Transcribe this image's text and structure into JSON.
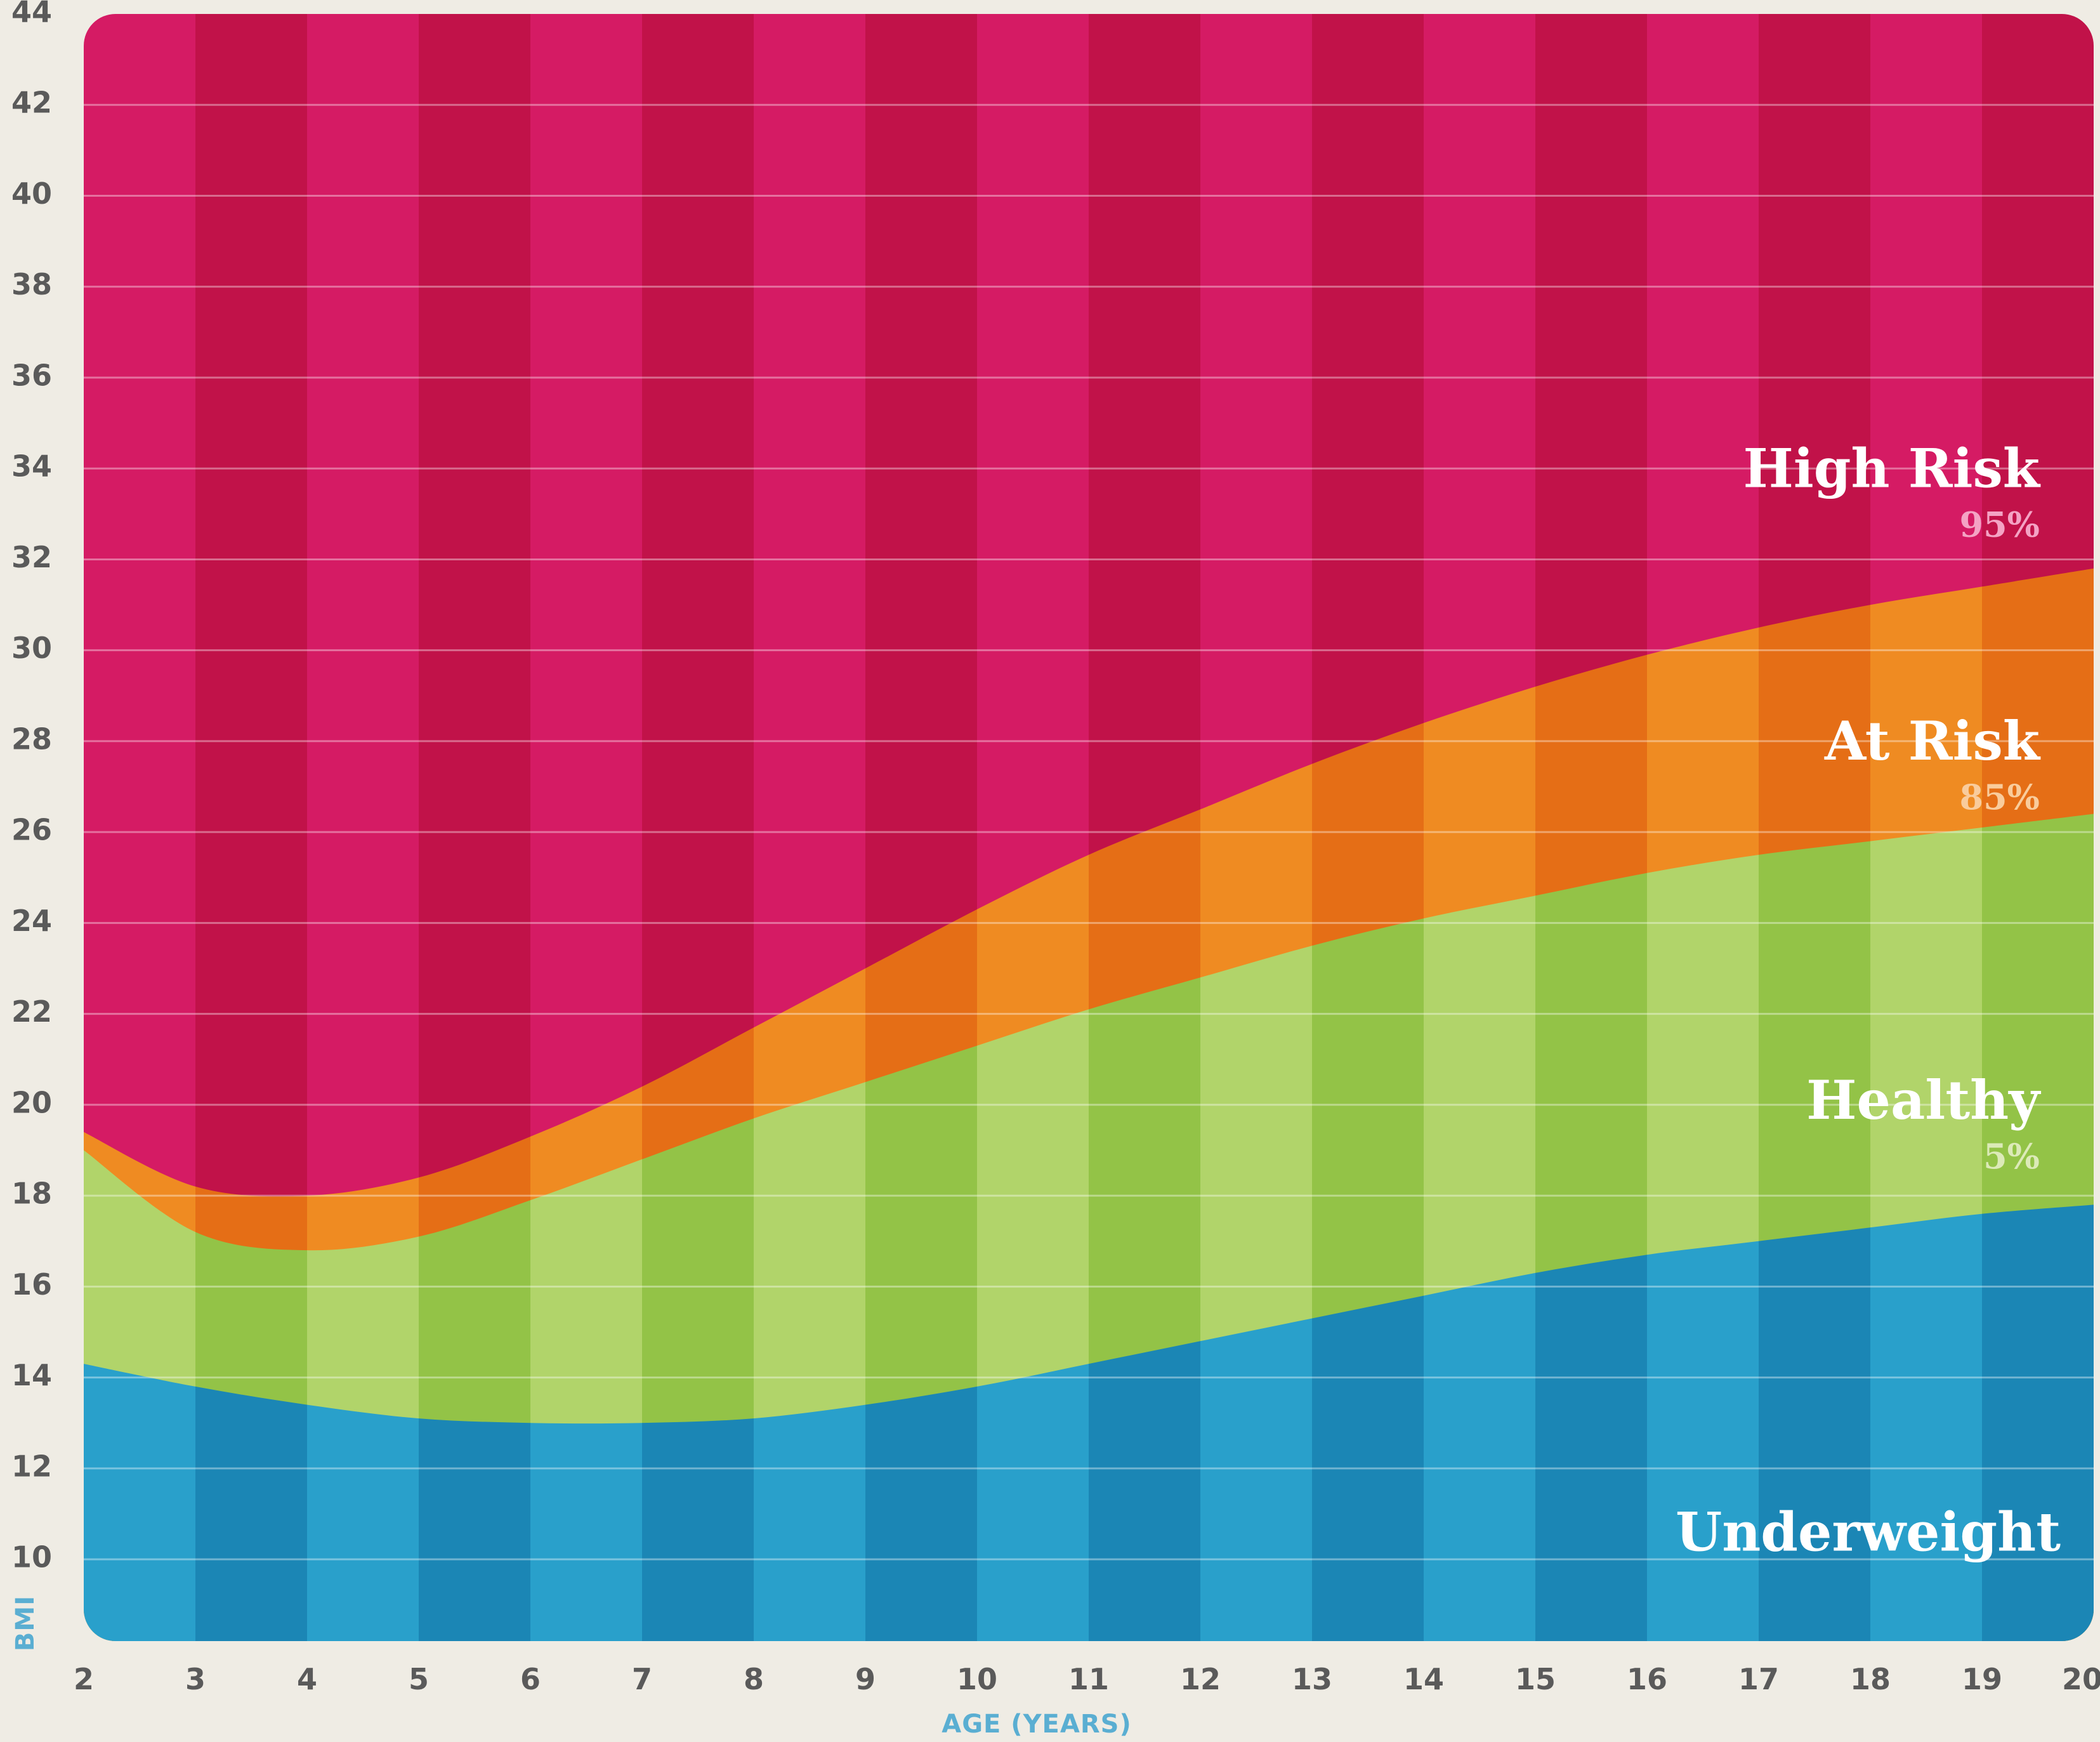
{
  "chart_data": {
    "type": "area",
    "xlabel": "AGE (YEARS)",
    "ylabel": "BMI",
    "xlim": [
      2,
      20
    ],
    "ylim": [
      8.2,
      44
    ],
    "x_ticks": [
      2,
      3,
      4,
      5,
      6,
      7,
      8,
      9,
      10,
      11,
      12,
      13,
      14,
      15,
      16,
      17,
      18,
      19,
      20
    ],
    "y_ticks": [
      10,
      12,
      14,
      16,
      18,
      20,
      22,
      24,
      26,
      28,
      30,
      32,
      34,
      36,
      38,
      40,
      42,
      44
    ],
    "grid": true,
    "x": [
      2,
      3,
      4,
      5,
      6,
      7,
      8,
      9,
      10,
      11,
      12,
      13,
      14,
      15,
      16,
      17,
      18,
      19,
      20
    ],
    "series": [
      {
        "name": "5%",
        "values": [
          14.3,
          13.8,
          13.4,
          13.1,
          13.0,
          13.0,
          13.1,
          13.4,
          13.8,
          14.3,
          14.8,
          15.3,
          15.8,
          16.3,
          16.7,
          17.0,
          17.3,
          17.6,
          17.8
        ]
      },
      {
        "name": "85%",
        "values": [
          19.0,
          17.2,
          16.8,
          17.1,
          17.9,
          18.8,
          19.7,
          20.5,
          21.3,
          22.1,
          22.8,
          23.5,
          24.1,
          24.6,
          25.1,
          25.5,
          25.8,
          26.1,
          26.4
        ]
      },
      {
        "name": "95%",
        "values": [
          19.4,
          18.2,
          18.0,
          18.4,
          19.3,
          20.4,
          21.7,
          23.0,
          24.3,
          25.5,
          26.5,
          27.5,
          28.4,
          29.2,
          29.9,
          30.5,
          31.0,
          31.4,
          31.8
        ]
      }
    ],
    "zones": [
      {
        "name": "High Risk",
        "percentile": "95%",
        "color_light": "#d51b64",
        "color_dark": "#c11249",
        "pct_color": "#f4a3c4"
      },
      {
        "name": "At Risk",
        "percentile": "85%",
        "color_light": "#ef8b22",
        "color_dark": "#e56e16",
        "pct_color": "#f9cc9c"
      },
      {
        "name": "Healthy",
        "percentile": "5%",
        "color_light": "#b1d46a",
        "color_dark": "#93c347",
        "pct_color": "#dceab8"
      },
      {
        "name": "Underweight",
        "percentile": "",
        "color_light": "#29a0cb",
        "color_dark": "#1b86b5",
        "pct_color": "#ffffff"
      }
    ]
  }
}
